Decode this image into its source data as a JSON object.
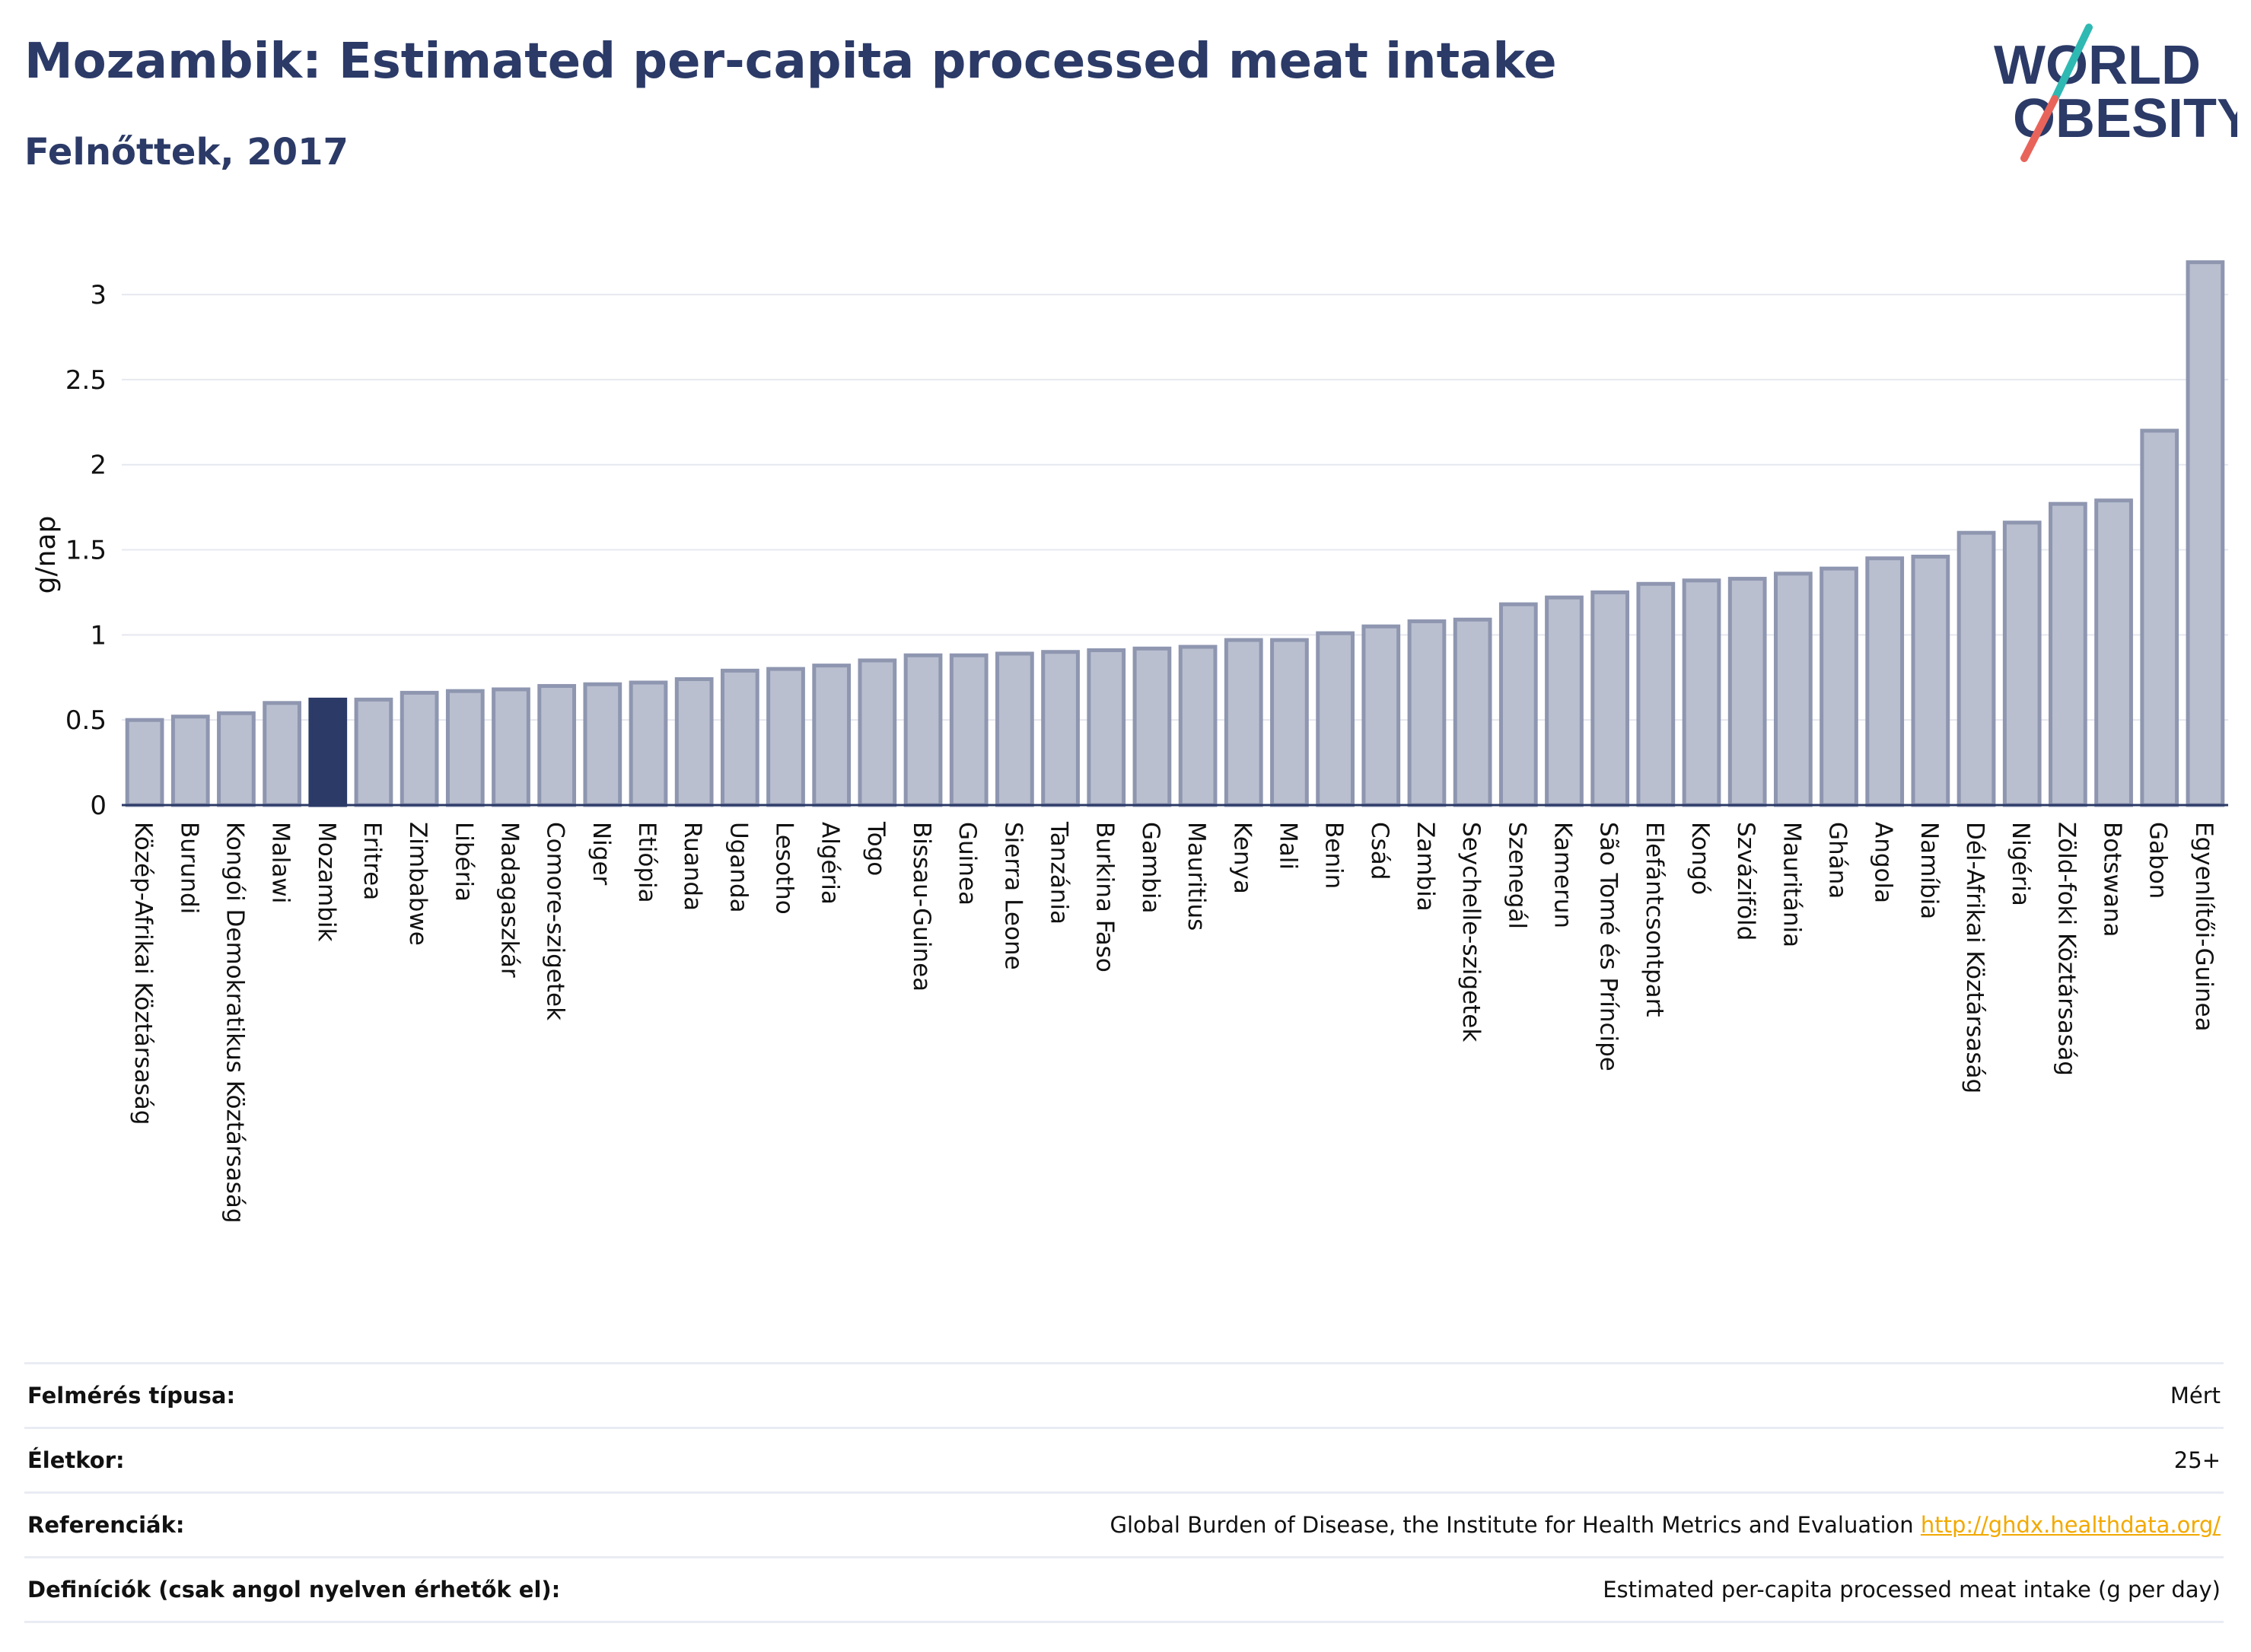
{
  "header": {
    "title": "Mozambik: Estimated per-capita processed meat intake",
    "subtitle": "Felnőttek, 2017"
  },
  "logo": {
    "line1": "WORLD",
    "line2": "OBESITY",
    "text_color": "#2b3a67",
    "slash_colors": [
      "#2fb9b3",
      "#e8645a"
    ]
  },
  "colors": {
    "bar": "#b9bfcf",
    "bar_stroke": "#8e96b0",
    "highlight": "#2b3a67",
    "grid": "#e6e8ef",
    "axis": "#2b3a67"
  },
  "chart_data": {
    "type": "bar",
    "ylabel": "g/nap",
    "ylim": [
      0,
      3.3
    ],
    "yticks": [
      0,
      0.5,
      1,
      1.5,
      2,
      2.5,
      3
    ],
    "ytick_labels": [
      "0",
      "0.5",
      "1",
      "1.5",
      "2",
      "2.5",
      "3"
    ],
    "grid": true,
    "highlight": "Mozambik",
    "categories": [
      "Közép-Afrikai Köztársaság",
      "Burundi",
      "Kongói Demokratikus Köztársaság",
      "Malawi",
      "Mozambik",
      "Eritrea",
      "Zimbabwe",
      "Libéria",
      "Madagaszkár",
      "Comore-szigetek",
      "Niger",
      "Etiópia",
      "Ruanda",
      "Uganda",
      "Lesotho",
      "Algéria",
      "Togo",
      "Bissau-Guinea",
      "Guinea",
      "Sierra Leone",
      "Tanzánia",
      "Burkina Faso",
      "Gambia",
      "Mauritius",
      "Kenya",
      "Mali",
      "Benin",
      "Csád",
      "Zambia",
      "Seychelle-szigetek",
      "Szenegál",
      "Kamerun",
      "São Tomé és Príncipe",
      "Elefántcsontpart",
      "Kongó",
      "Szváziföld",
      "Mauritánia",
      "Ghána",
      "Angola",
      "Namíbia",
      "Dél-Afrikai Köztársaság",
      "Nigéria",
      "Zöld-foki Köztársaság",
      "Botswana",
      "Gabon",
      "Egyenlítői-Guinea"
    ],
    "values": [
      0.5,
      0.52,
      0.54,
      0.6,
      0.62,
      0.62,
      0.66,
      0.67,
      0.68,
      0.7,
      0.71,
      0.72,
      0.74,
      0.79,
      0.8,
      0.82,
      0.85,
      0.88,
      0.88,
      0.89,
      0.9,
      0.91,
      0.92,
      0.93,
      0.97,
      0.97,
      1.01,
      1.05,
      1.08,
      1.09,
      1.18,
      1.22,
      1.25,
      1.3,
      1.32,
      1.33,
      1.36,
      1.39,
      1.45,
      1.46,
      1.6,
      1.66,
      1.77,
      1.79,
      2.2,
      3.19
    ]
  },
  "info_table": [
    {
      "label": "Felmérés típusa:",
      "value": "Mért"
    },
    {
      "label": "Életkor:",
      "value": "25+"
    },
    {
      "label": "Referenciák:",
      "value": "Global Burden of Disease, the Institute for Health Metrics and Evaluation",
      "link": "http://ghdx.healthdata.org/"
    },
    {
      "label": "Definíciók (csak angol nyelven érhetők el):",
      "value": "Estimated per-capita processed meat intake (g per day)"
    }
  ]
}
